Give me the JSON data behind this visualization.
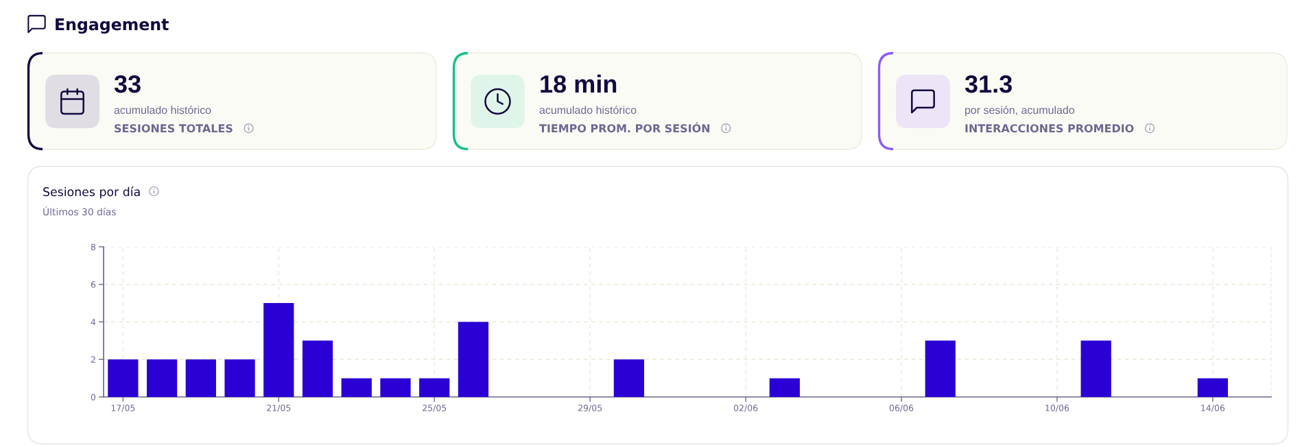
{
  "chart_data": [
    {
      "type": "other",
      "title": "Engagement"
    },
    {
      "type": "other",
      "title": "SESIONES TOTALES",
      "annotations": [
        "33",
        "acumulado histórico"
      ]
    },
    {
      "type": "other",
      "title": "TIEMPO PROM. POR SESIÓN",
      "annotations": [
        "18 min",
        "acumulado histórico"
      ]
    },
    {
      "type": "other",
      "title": "INTERACCIONES PROMEDIO",
      "annotations": [
        "31.3",
        "por sesión, acumulado"
      ]
    },
    {
      "type": "bar",
      "title": "Sesiones por día",
      "subtitle": "Últimos 30 días",
      "categories": [
        "17/05",
        null,
        null,
        null,
        "21/05",
        null,
        null,
        null,
        "25/05",
        null,
        null,
        null,
        "29/05",
        null,
        null,
        null,
        "02/06",
        null,
        null,
        null,
        "06/06",
        null,
        null,
        null,
        "10/06",
        null,
        null,
        null,
        "14/06",
        null
      ],
      "values": [
        2,
        2,
        2,
        2,
        5,
        3,
        1,
        1,
        1,
        4,
        0,
        0,
        0,
        2,
        0,
        0,
        0,
        1,
        0,
        0,
        0,
        3,
        0,
        0,
        0,
        3,
        0,
        0,
        1,
        0
      ],
      "color": "#2b00d4",
      "ylim": [
        0,
        8
      ],
      "yticks": [
        0,
        2,
        4,
        6,
        8
      ],
      "grid": true
    }
  ]
}
